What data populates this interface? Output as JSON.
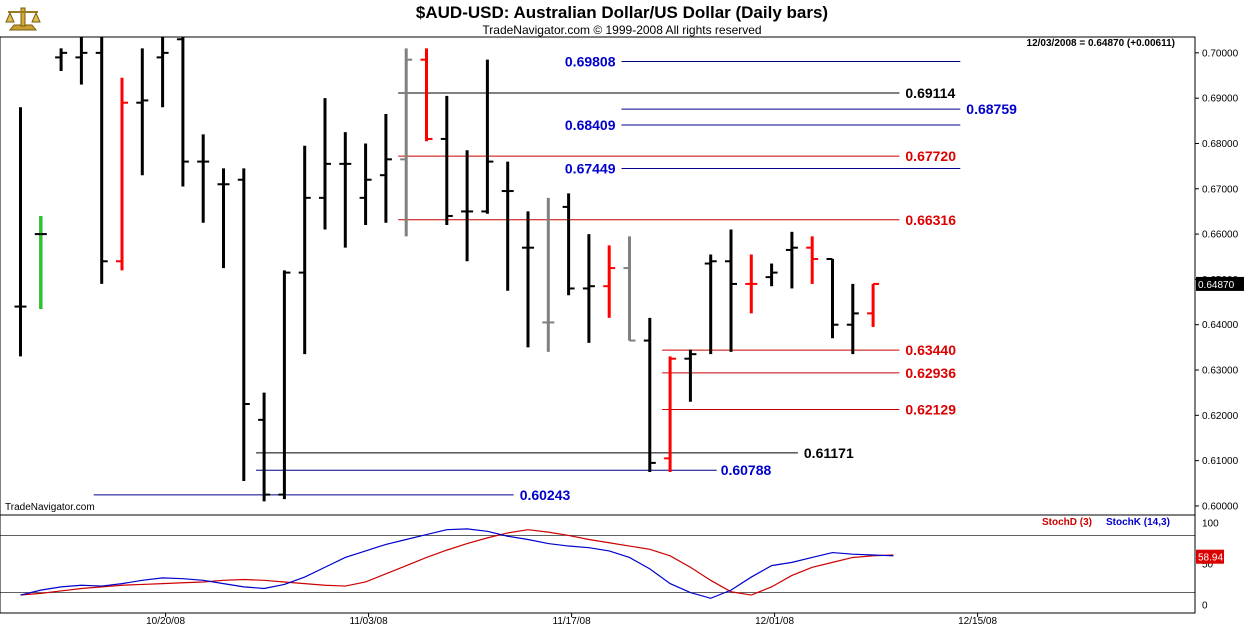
{
  "header": {
    "title": "$AUD-USD:  Australian Dollar/US Dollar  (Daily bars)",
    "copyright": "TradeNavigator.com © 1999-2008 All rights reserved",
    "readout": "12/03/2008 = 0.64870 (+0.00611)",
    "watermark": "TradeNavigator.com",
    "logo_icon": "brass-scale-icon"
  },
  "chart_data": [
    {
      "type": "ohlc",
      "ylim": [
        0.598,
        0.7035
      ],
      "y_ticks": [
        "0.70000",
        "0.69000",
        "0.68000",
        "0.67000",
        "0.66000",
        "0.65000",
        "0.64000",
        "0.63000",
        "0.62000",
        "0.61000",
        "0.60000"
      ],
      "x_ticks": [
        "10/20/08",
        "11/03/08",
        "11/17/08",
        "12/01/08",
        "12/15/08"
      ],
      "last_price_label": "0.64870",
      "bars": [
        {
          "o": 0.644,
          "h": 0.688,
          "l": 0.633,
          "c": 0.644,
          "color": "#000000"
        },
        {
          "o": 0.66,
          "h": 0.664,
          "l": 0.6435,
          "c": 0.66,
          "color": "#000000",
          "green_from": 0.664,
          "green_to": 0.6435
        },
        {
          "o": 0.699,
          "h": 0.701,
          "l": 0.696,
          "c": 0.7,
          "color": "#000000"
        },
        {
          "o": 0.699,
          "h": 0.7035,
          "l": 0.693,
          "c": 0.7,
          "color": "#000000"
        },
        {
          "o": 0.7,
          "h": 0.7035,
          "l": 0.649,
          "c": 0.654,
          "color": "#000000"
        },
        {
          "o": 0.654,
          "h": 0.6945,
          "l": 0.652,
          "c": 0.689,
          "color": "#ff0000"
        },
        {
          "o": 0.689,
          "h": 0.701,
          "l": 0.673,
          "c": 0.6895,
          "color": "#000000"
        },
        {
          "o": 0.699,
          "h": 0.7035,
          "l": 0.688,
          "c": 0.7,
          "color": "#000000"
        },
        {
          "o": 0.703,
          "h": 0.7035,
          "l": 0.6705,
          "c": 0.676,
          "color": "#000000"
        },
        {
          "o": 0.676,
          "h": 0.682,
          "l": 0.6625,
          "c": 0.676,
          "color": "#000000"
        },
        {
          "o": 0.671,
          "h": 0.6745,
          "l": 0.6525,
          "c": 0.671,
          "color": "#000000"
        },
        {
          "o": 0.672,
          "h": 0.6745,
          "l": 0.6055,
          "c": 0.6225,
          "color": "#000000"
        },
        {
          "o": 0.619,
          "h": 0.625,
          "l": 0.601,
          "c": 0.6025,
          "color": "#000000"
        },
        {
          "o": 0.6025,
          "h": 0.652,
          "l": 0.6015,
          "c": 0.6515,
          "color": "#000000"
        },
        {
          "o": 0.6515,
          "h": 0.6795,
          "l": 0.6335,
          "c": 0.668,
          "color": "#000000"
        },
        {
          "o": 0.668,
          "h": 0.69,
          "l": 0.661,
          "c": 0.6755,
          "color": "#000000"
        },
        {
          "o": 0.6755,
          "h": 0.6825,
          "l": 0.657,
          "c": 0.6755,
          "color": "#000000"
        },
        {
          "o": 0.668,
          "h": 0.68,
          "l": 0.662,
          "c": 0.672,
          "color": "#000000"
        },
        {
          "o": 0.673,
          "h": 0.6865,
          "l": 0.6625,
          "c": 0.6765,
          "color": "#000000"
        },
        {
          "o": 0.6765,
          "h": 0.701,
          "l": 0.6595,
          "c": 0.6985,
          "color": "#808080"
        },
        {
          "o": 0.6985,
          "h": 0.701,
          "l": 0.6805,
          "c": 0.681,
          "color": "#ff0000"
        },
        {
          "o": 0.681,
          "h": 0.6905,
          "l": 0.662,
          "c": 0.664,
          "color": "#000000"
        },
        {
          "o": 0.665,
          "h": 0.6785,
          "l": 0.654,
          "c": 0.665,
          "color": "#000000"
        },
        {
          "o": 0.665,
          "h": 0.6985,
          "l": 0.6645,
          "c": 0.676,
          "color": "#000000"
        },
        {
          "o": 0.6695,
          "h": 0.676,
          "l": 0.6475,
          "c": 0.6695,
          "color": "#000000"
        },
        {
          "o": 0.657,
          "h": 0.665,
          "l": 0.635,
          "c": 0.657,
          "color": "#000000"
        },
        {
          "o": 0.6405,
          "h": 0.668,
          "l": 0.634,
          "c": 0.6405,
          "color": "#808080"
        },
        {
          "o": 0.666,
          "h": 0.669,
          "l": 0.6465,
          "c": 0.648,
          "color": "#000000"
        },
        {
          "o": 0.648,
          "h": 0.66,
          "l": 0.636,
          "c": 0.6485,
          "color": "#000000"
        },
        {
          "o": 0.6485,
          "h": 0.6575,
          "l": 0.6415,
          "c": 0.6525,
          "color": "#ff0000"
        },
        {
          "o": 0.6525,
          "h": 0.6595,
          "l": 0.6365,
          "c": 0.6365,
          "color": "#808080"
        },
        {
          "o": 0.6365,
          "h": 0.6415,
          "l": 0.6075,
          "c": 0.6095,
          "color": "#000000"
        },
        {
          "o": 0.6105,
          "h": 0.633,
          "l": 0.6075,
          "c": 0.6325,
          "color": "#ff0000"
        },
        {
          "o": 0.6325,
          "h": 0.6345,
          "l": 0.623,
          "c": 0.6335,
          "color": "#000000"
        },
        {
          "o": 0.6535,
          "h": 0.6555,
          "l": 0.6335,
          "c": 0.654,
          "color": "#000000"
        },
        {
          "o": 0.654,
          "h": 0.661,
          "l": 0.634,
          "c": 0.649,
          "color": "#000000"
        },
        {
          "o": 0.649,
          "h": 0.6555,
          "l": 0.6425,
          "c": 0.649,
          "color": "#ff0000"
        },
        {
          "o": 0.6505,
          "h": 0.6535,
          "l": 0.6485,
          "c": 0.6515,
          "color": "#000000"
        },
        {
          "o": 0.6565,
          "h": 0.6605,
          "l": 0.648,
          "c": 0.657,
          "color": "#000000"
        },
        {
          "o": 0.657,
          "h": 0.6595,
          "l": 0.649,
          "c": 0.6545,
          "color": "#ff0000"
        },
        {
          "o": 0.6545,
          "h": 0.6545,
          "l": 0.637,
          "c": 0.64,
          "color": "#000000"
        },
        {
          "o": 0.64,
          "h": 0.649,
          "l": 0.6335,
          "c": 0.6425,
          "color": "#000000"
        },
        {
          "o": 0.6425,
          "h": 0.649,
          "l": 0.6395,
          "c": 0.649,
          "color": "#ff0000"
        }
      ],
      "levels": [
        {
          "value": 0.69808,
          "label": "0.69808",
          "color": "#0000cc",
          "line": "#000088",
          "from": 30,
          "to": 46
        },
        {
          "value": 0.69114,
          "label": "0.69114",
          "color": "#000000",
          "line": "#000000",
          "from": 19,
          "to": 43
        },
        {
          "value": 0.68759,
          "label": "0.68759",
          "color": "#0000cc",
          "line": "#000088",
          "from": 30,
          "to": 46
        },
        {
          "value": 0.68409,
          "label": "0.68409",
          "color": "#0000cc",
          "line": "#000088",
          "from": 30,
          "to": 46
        },
        {
          "value": 0.6772,
          "label": "0.67720",
          "color": "#dd0000",
          "line": "#cc0000",
          "from": 19,
          "to": 43
        },
        {
          "value": 0.67449,
          "label": "0.67449",
          "color": "#0000cc",
          "line": "#000088",
          "from": 30,
          "to": 46
        },
        {
          "value": 0.66316,
          "label": "0.66316",
          "color": "#dd0000",
          "line": "#cc0000",
          "from": 19,
          "to": 43
        },
        {
          "value": 0.6344,
          "label": "0.63440",
          "color": "#dd0000",
          "line": "#cc0000",
          "from": 32,
          "to": 43
        },
        {
          "value": 0.62936,
          "label": "0.62936",
          "color": "#dd0000",
          "line": "#cc0000",
          "from": 32,
          "to": 43
        },
        {
          "value": 0.62129,
          "label": "0.62129",
          "color": "#dd0000",
          "line": "#cc0000",
          "from": 32,
          "to": 43
        },
        {
          "value": 0.61171,
          "label": "0.61171",
          "color": "#000000",
          "line": "#000000",
          "from": 12,
          "to": 38
        },
        {
          "value": 0.60788,
          "label": "0.60788",
          "color": "#0000cc",
          "line": "#000088",
          "from": 12,
          "to": 34
        },
        {
          "value": 0.60243,
          "label": "0.60243",
          "color": "#0000cc",
          "line": "#000088",
          "from": 4,
          "to": 24
        }
      ]
    },
    {
      "type": "line",
      "ylim": [
        -10,
        110
      ],
      "y_ticks": [
        "100",
        "50",
        "0"
      ],
      "reference_lines": [
        85,
        15
      ],
      "legend": [
        "StochD (3)",
        "StochK (14,3)"
      ],
      "last_value_label": "58.94",
      "series": [
        {
          "name": "StochD (3)",
          "color": "#cc0000",
          "values": [
            12,
            14,
            17,
            20,
            22,
            24,
            25,
            26,
            27,
            28,
            30,
            31,
            30,
            28,
            26,
            24,
            23,
            28,
            38,
            48,
            58,
            67,
            75,
            82,
            88,
            92,
            89,
            85,
            80,
            76,
            72,
            68,
            60,
            46,
            30,
            16,
            12,
            22,
            36,
            46,
            52,
            58,
            60,
            61
          ]
        },
        {
          "name": "StochK (14,3)",
          "color": "#0000cc",
          "values": [
            12,
            18,
            22,
            24,
            23,
            26,
            30,
            33,
            32,
            30,
            26,
            22,
            20,
            25,
            34,
            46,
            58,
            66,
            74,
            80,
            86,
            92,
            93,
            90,
            84,
            80,
            75,
            72,
            70,
            66,
            58,
            44,
            26,
            15,
            8,
            18,
            34,
            48,
            52,
            58,
            64,
            62,
            61,
            60
          ]
        }
      ]
    }
  ]
}
